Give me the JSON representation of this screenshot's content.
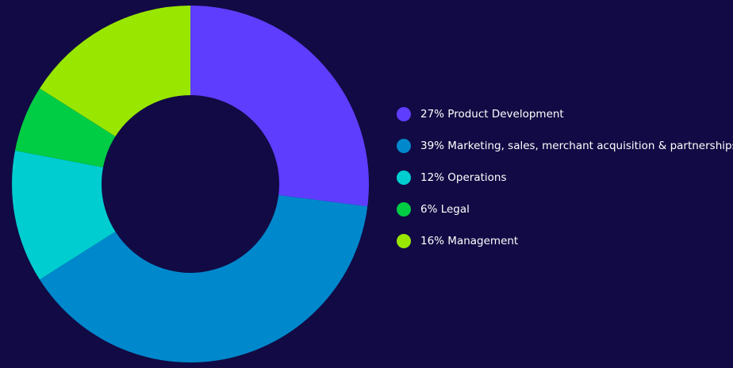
{
  "chart_data": {
    "type": "pie",
    "variant": "donut",
    "legend_position": "right",
    "slices": [
      {
        "label": "27% Product Development",
        "value": 27,
        "color": "#5f3dff"
      },
      {
        "label": "39% Marketing, sales, merchant acquisition & partnerships",
        "value": 39,
        "color": "#0088cc"
      },
      {
        "label": "12% Operations",
        "value": 12,
        "color": "#00cdd0"
      },
      {
        "label": "6% Legal",
        "value": 6,
        "color": "#00cc44"
      },
      {
        "label": "16% Management",
        "value": 16,
        "color": "#99e600"
      }
    ]
  },
  "colors": {
    "background": "#120a44",
    "text": "#ffffff"
  }
}
